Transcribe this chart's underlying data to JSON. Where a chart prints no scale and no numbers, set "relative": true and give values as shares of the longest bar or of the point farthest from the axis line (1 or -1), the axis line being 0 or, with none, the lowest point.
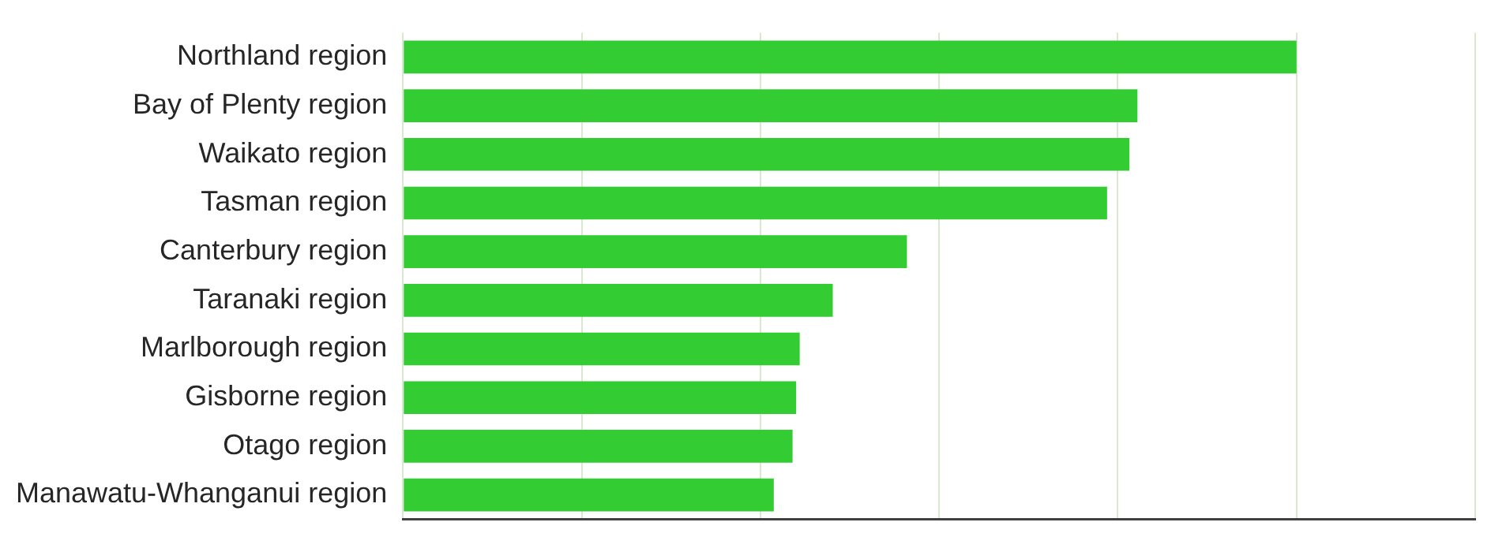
{
  "chart_data": {
    "type": "bar",
    "orientation": "horizontal",
    "relative": true,
    "grid": "x",
    "legend": false,
    "color": "#33cc33",
    "categories": [
      "Northland region",
      "Bay of Plenty region",
      "Waikato region",
      "Tasman region",
      "Canterbury region",
      "Taranaki region",
      "Marlborough region",
      "Gisborne region",
      "Otago region",
      "Manawatu-Whanganui region"
    ],
    "values": [
      1,
      0.822,
      0.813,
      0.788,
      0.564,
      0.481,
      0.444,
      0.44,
      0.436,
      0.415
    ]
  }
}
